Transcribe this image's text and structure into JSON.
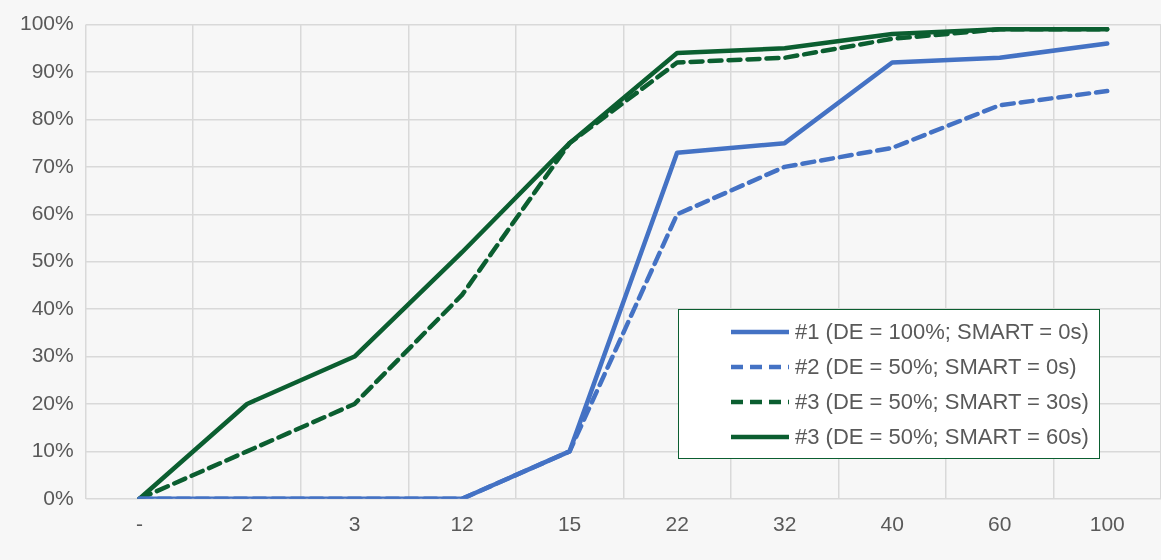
{
  "chart_data": {
    "type": "line",
    "categories": [
      "-",
      "2",
      "3",
      "12",
      "15",
      "22",
      "32",
      "40",
      "60",
      "100"
    ],
    "series": [
      {
        "name": "#1 (DE = 100%; SMART = 0s)",
        "color": "#4472c4",
        "line_style": "solid",
        "values": [
          0,
          0,
          0,
          0,
          10,
          73,
          75,
          92,
          93,
          96
        ]
      },
      {
        "name": "#2 (DE = 50%; SMART = 0s)",
        "color": "#4472c4",
        "line_style": "dashed",
        "values": [
          0,
          0,
          0,
          0,
          10,
          60,
          70,
          74,
          83,
          86
        ]
      },
      {
        "name": "#3 (DE = 50%; SMART = 30s)",
        "color": "#0b5e30",
        "line_style": "dashed",
        "values": [
          0,
          10,
          20,
          43,
          75,
          92,
          93,
          97,
          99,
          99
        ]
      },
      {
        "name": "#3 (DE = 50%; SMART = 60s)",
        "color": "#0b5e30",
        "line_style": "solid",
        "values": [
          0,
          20,
          30,
          52,
          75,
          94,
          95,
          98,
          99,
          99
        ]
      }
    ],
    "ylim": [
      0,
      100
    ],
    "yticks": [
      {
        "value": 0,
        "label": "0%"
      },
      {
        "value": 10,
        "label": "10%"
      },
      {
        "value": 20,
        "label": "20%"
      },
      {
        "value": 30,
        "label": "30%"
      },
      {
        "value": 40,
        "label": "40%"
      },
      {
        "value": 50,
        "label": "50%"
      },
      {
        "value": 60,
        "label": "60%"
      },
      {
        "value": 70,
        "label": "70%"
      },
      {
        "value": 80,
        "label": "80%"
      },
      {
        "value": 90,
        "label": "90%"
      },
      {
        "value": 100,
        "label": "100%"
      }
    ],
    "grid": true,
    "legend": "right",
    "marker": "none"
  }
}
